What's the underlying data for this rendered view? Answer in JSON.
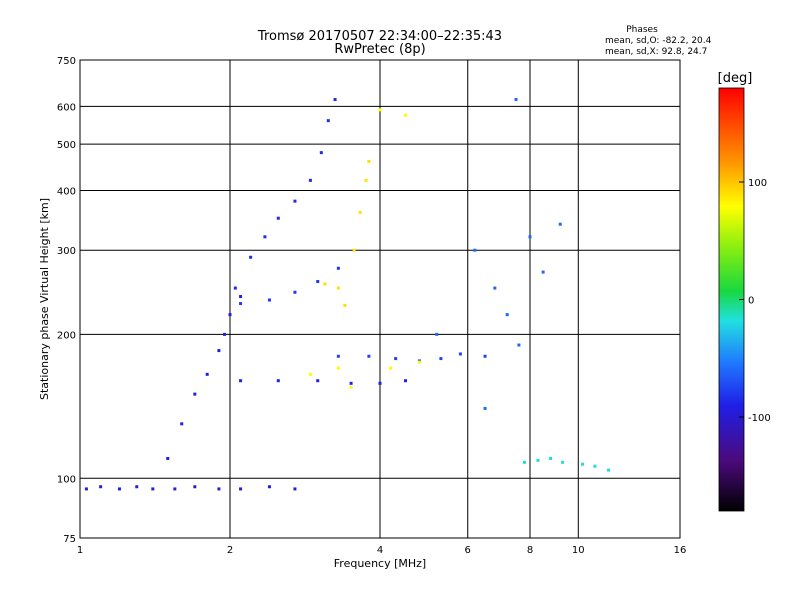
{
  "chart_data": {
    "type": "scatter",
    "title": "Tromsø 20170507 22:34:00–22:35:43",
    "subtitle": "RwPretec (8p)",
    "xlabel": "Frequency [MHz]",
    "ylabel": "Stationary phase Virtual Height [km]",
    "x_scale": "log",
    "y_scale": "log",
    "xlim": [
      1,
      16
    ],
    "ylim": [
      75,
      750
    ],
    "x_ticks": [
      1,
      2,
      4,
      6,
      8,
      10,
      16
    ],
    "y_ticks": [
      75,
      100,
      200,
      300,
      400,
      500,
      600,
      750
    ],
    "grid": true,
    "stats": {
      "heading": "Phases",
      "line_o": "mean, sd,O: -82.2, 20.4",
      "line_x": "mean, sd,X:  92.8, 24.7"
    },
    "colorbar": {
      "label": "[deg]",
      "range": [
        -180,
        180
      ],
      "ticks": [
        "100",
        "0",
        "-100"
      ],
      "tick_values": [
        100,
        0,
        -100
      ]
    },
    "clusters": [
      {
        "name": "low-band",
        "phase": -95,
        "points": [
          [
            1.03,
            95
          ],
          [
            1.1,
            96
          ],
          [
            1.2,
            95
          ],
          [
            1.3,
            96
          ],
          [
            1.4,
            95
          ],
          [
            1.55,
            95
          ],
          [
            1.7,
            96
          ],
          [
            1.9,
            95
          ],
          [
            2.1,
            95
          ],
          [
            2.4,
            96
          ],
          [
            2.7,
            95
          ]
        ]
      },
      {
        "name": "O-trace-lower",
        "phase": -90,
        "points": [
          [
            1.5,
            110
          ],
          [
            1.6,
            130
          ],
          [
            1.7,
            150
          ],
          [
            1.8,
            165
          ],
          [
            1.9,
            185
          ],
          [
            1.95,
            200
          ],
          [
            2.0,
            220
          ],
          [
            2.1,
            240
          ]
        ]
      },
      {
        "name": "O-trace-upper",
        "phase": -85,
        "points": [
          [
            2.05,
            250
          ],
          [
            2.2,
            290
          ],
          [
            2.35,
            320
          ],
          [
            2.5,
            350
          ],
          [
            2.7,
            380
          ],
          [
            2.9,
            420
          ],
          [
            3.05,
            480
          ],
          [
            3.15,
            560
          ],
          [
            3.25,
            620
          ]
        ]
      },
      {
        "name": "O-sweep",
        "phase": -80,
        "points": [
          [
            2.1,
            232
          ],
          [
            2.4,
            236
          ],
          [
            2.7,
            245
          ],
          [
            3.0,
            258
          ],
          [
            3.3,
            275
          ]
        ]
      },
      {
        "name": "E-trace",
        "phase": -90,
        "points": [
          [
            2.1,
            160
          ],
          [
            2.5,
            160
          ],
          [
            3.0,
            160
          ],
          [
            3.5,
            158
          ],
          [
            4.0,
            158
          ],
          [
            4.5,
            160
          ]
        ]
      },
      {
        "name": "Es-trace",
        "phase": -75,
        "points": [
          [
            3.3,
            180
          ],
          [
            3.8,
            180
          ],
          [
            4.3,
            178
          ],
          [
            4.8,
            176
          ],
          [
            5.3,
            178
          ],
          [
            5.8,
            182
          ],
          [
            6.5,
            180
          ]
        ]
      },
      {
        "name": "X-trace",
        "phase": 90,
        "points": [
          [
            3.4,
            230
          ],
          [
            3.55,
            300
          ],
          [
            3.65,
            360
          ],
          [
            3.75,
            420
          ],
          [
            3.8,
            460
          ],
          [
            3.3,
            250
          ],
          [
            3.1,
            255
          ]
        ]
      },
      {
        "name": "X-scatter",
        "phase": 80,
        "points": [
          [
            3.3,
            170
          ],
          [
            4.2,
            170
          ],
          [
            4.8,
            175
          ],
          [
            2.9,
            165
          ],
          [
            4.0,
            590
          ],
          [
            4.5,
            575
          ],
          [
            3.5,
            155
          ]
        ]
      },
      {
        "name": "high-band",
        "phase": -20,
        "points": [
          [
            7.8,
            108
          ],
          [
            8.3,
            109
          ],
          [
            8.8,
            110
          ],
          [
            9.3,
            108
          ],
          [
            10.2,
            107
          ],
          [
            10.8,
            106
          ],
          [
            11.5,
            104
          ]
        ]
      },
      {
        "name": "sparse",
        "phase": -60,
        "points": [
          [
            6.2,
            300
          ],
          [
            7.2,
            220
          ],
          [
            7.6,
            190
          ],
          [
            8.0,
            320
          ],
          [
            8.5,
            270
          ],
          [
            6.8,
            250
          ],
          [
            5.2,
            200
          ],
          [
            9.2,
            340
          ],
          [
            6.5,
            140
          ],
          [
            7.5,
            620
          ]
        ]
      }
    ]
  }
}
